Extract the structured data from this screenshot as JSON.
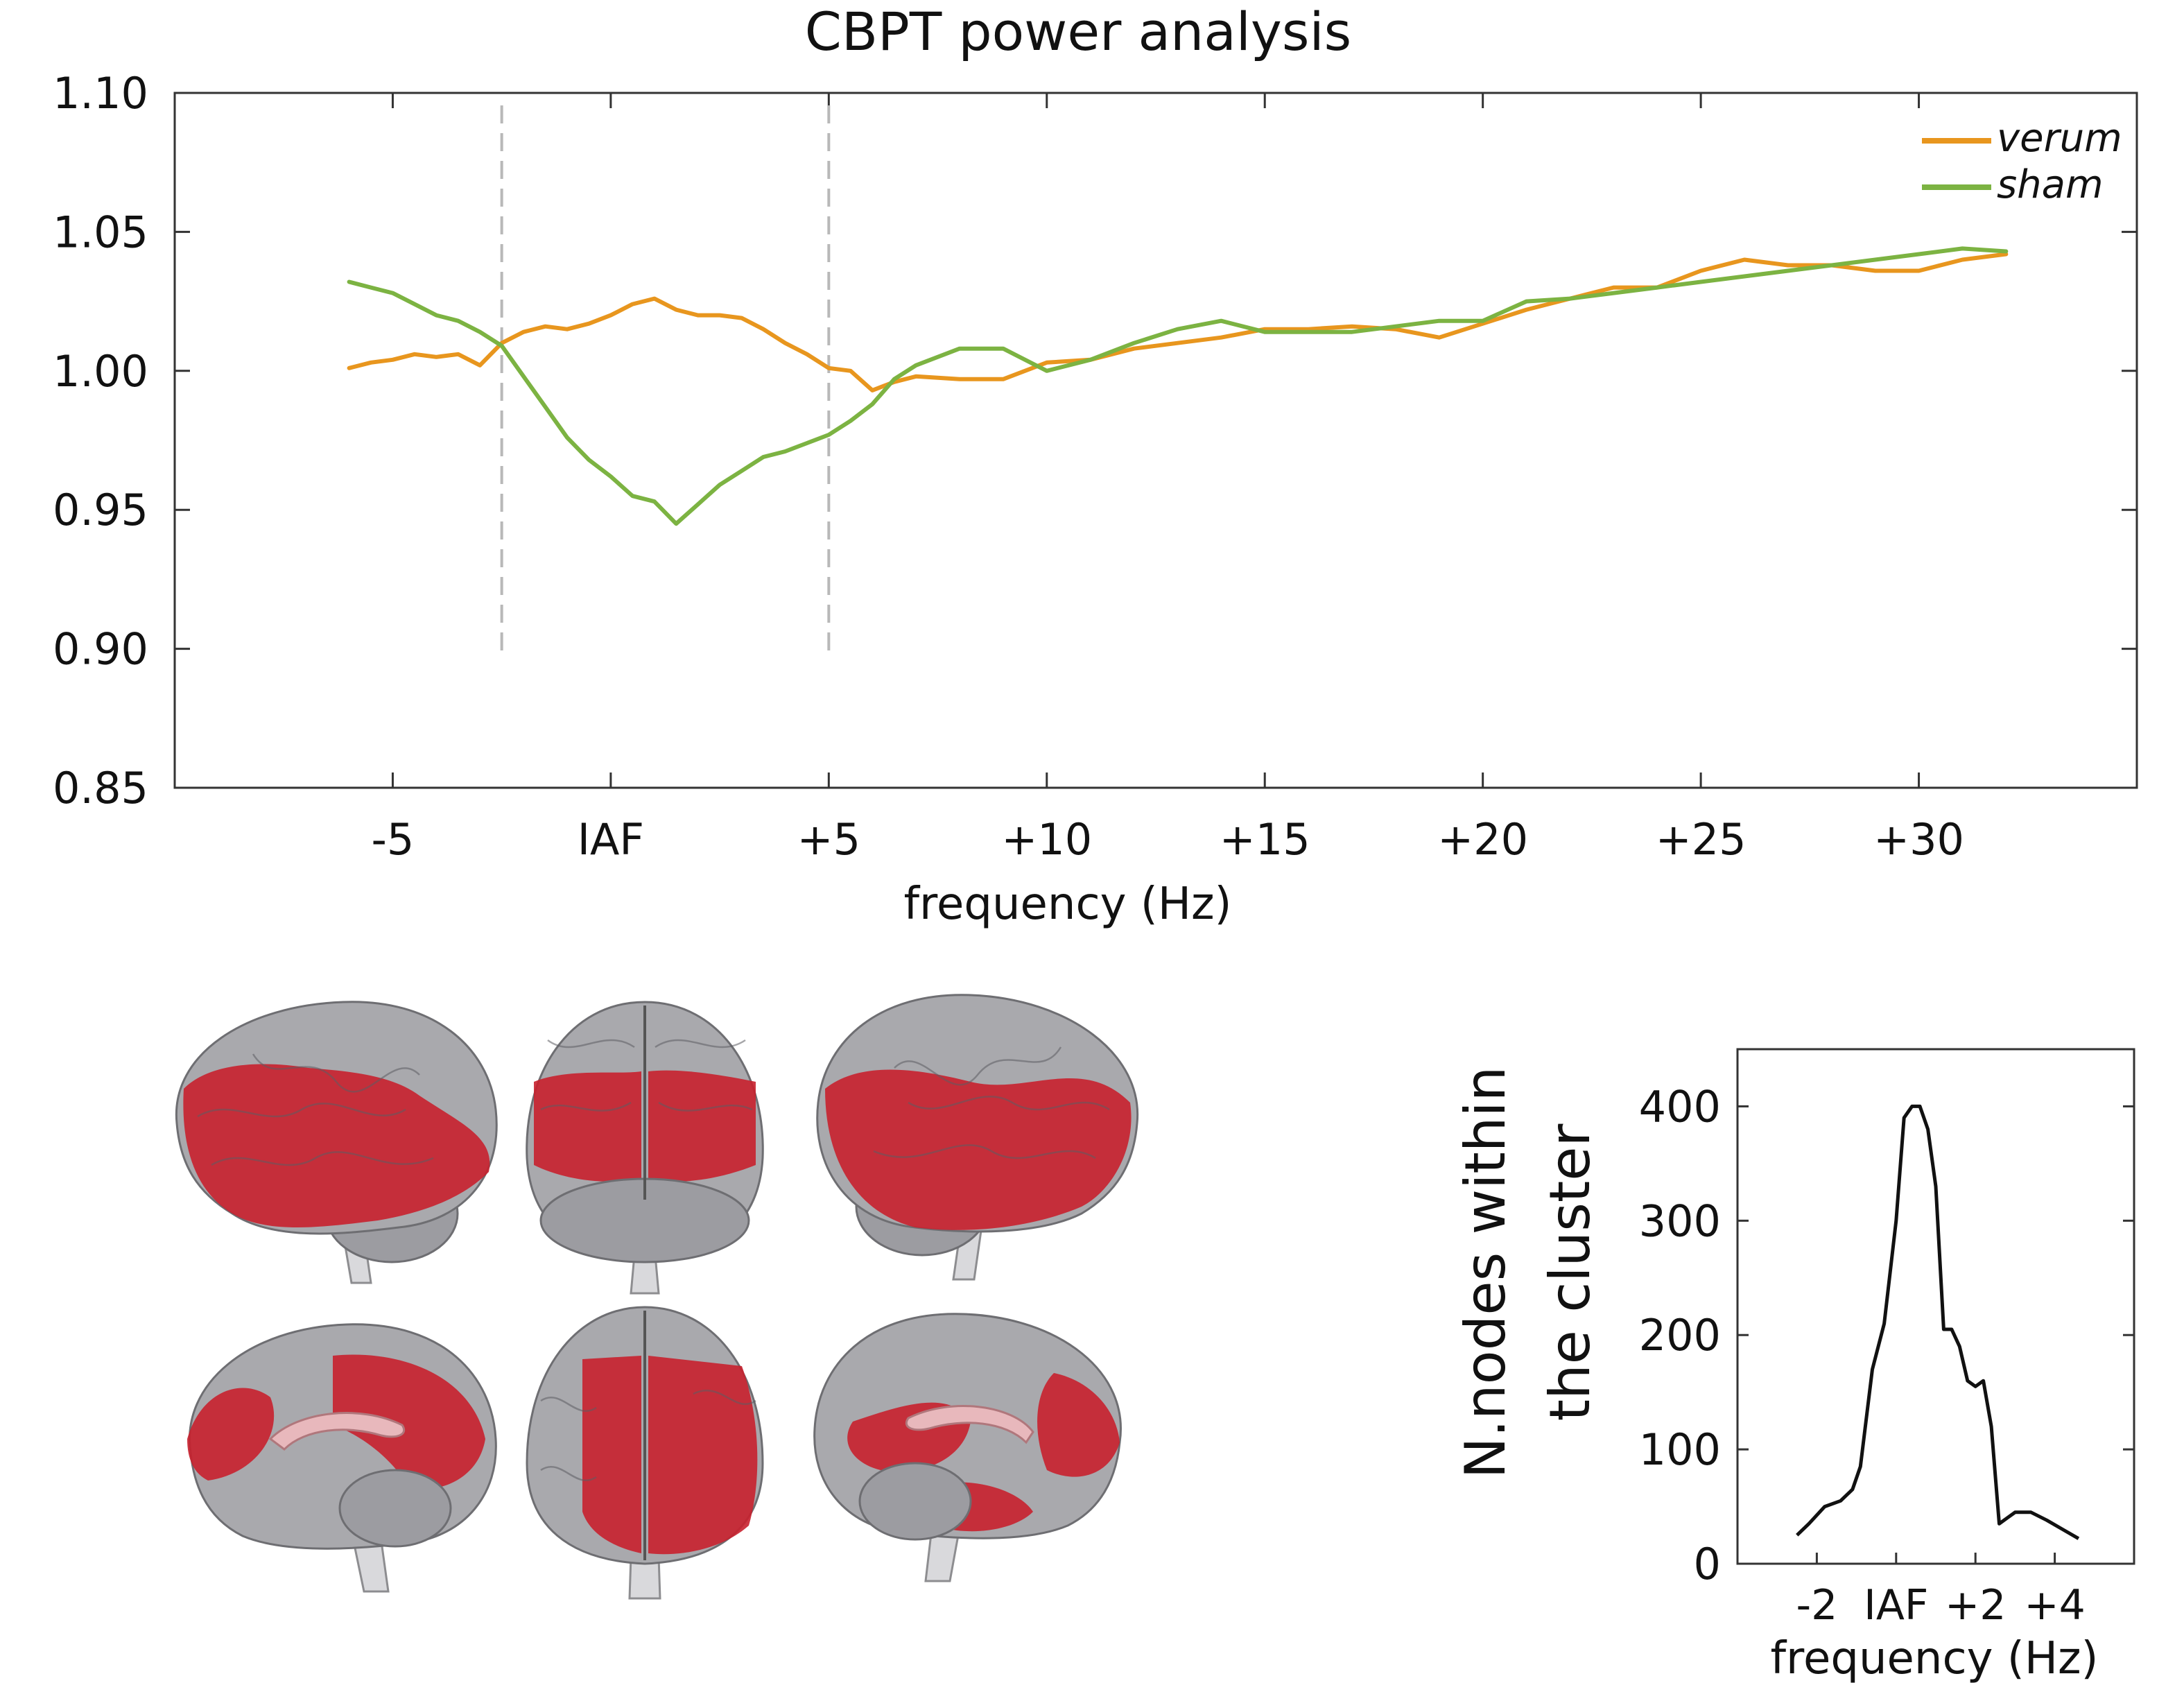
{
  "chart_data": [
    {
      "type": "line",
      "title": "CBPT power analysis",
      "xlabel": "frequency (Hz)",
      "ylabel": "",
      "x_tick_labels": [
        {
          "x": -5,
          "label": "-5"
        },
        {
          "x": 0,
          "label": "IAF"
        },
        {
          "x": 5,
          "label": "+5"
        },
        {
          "x": 10,
          "label": "+10"
        },
        {
          "x": 15,
          "label": "+15"
        },
        {
          "x": 20,
          "label": "+20"
        },
        {
          "x": 25,
          "label": "+25"
        },
        {
          "x": 30,
          "label": "+30"
        }
      ],
      "y_ticks": [
        "0.85",
        "0.90",
        "0.95",
        "1.00",
        "1.05",
        "1.10"
      ],
      "xlim": [
        -10,
        35
      ],
      "ylim": [
        0.85,
        1.1
      ],
      "vertical_markers": [
        -2.5,
        5
      ],
      "legend": "top-right",
      "grid": false,
      "series": [
        {
          "name": "verum",
          "color": "#E8961E",
          "x": [
            -6,
            -5.5,
            -5,
            -4.5,
            -4,
            -3.5,
            -3,
            -2.5,
            -2,
            -1.5,
            -1,
            -0.5,
            0,
            0.5,
            1,
            1.5,
            2,
            2.5,
            3,
            3.5,
            4,
            4.5,
            5,
            5.5,
            6,
            6.5,
            7,
            8,
            9,
            10,
            11,
            12,
            13,
            14,
            15,
            16,
            17,
            18,
            19,
            20,
            21,
            22,
            23,
            24,
            25,
            26,
            27,
            28,
            29,
            30,
            31,
            32
          ],
          "values": [
            1.001,
            1.003,
            1.004,
            1.006,
            1.005,
            1.006,
            1.002,
            1.01,
            1.014,
            1.016,
            1.015,
            1.017,
            1.02,
            1.024,
            1.026,
            1.022,
            1.02,
            1.02,
            1.019,
            1.015,
            1.01,
            1.006,
            1.001,
            1.0,
            0.993,
            0.996,
            0.998,
            0.997,
            0.997,
            1.003,
            1.004,
            1.008,
            1.01,
            1.012,
            1.015,
            1.015,
            1.016,
            1.015,
            1.012,
            1.017,
            1.022,
            1.026,
            1.03,
            1.03,
            1.036,
            1.04,
            1.038,
            1.038,
            1.036,
            1.036,
            1.04,
            1.042
          ]
        },
        {
          "name": "sham",
          "color": "#7CB342",
          "x": [
            -6,
            -5.5,
            -5,
            -4.5,
            -4,
            -3.5,
            -3,
            -2.5,
            -2,
            -1.5,
            -1,
            -0.5,
            0,
            0.5,
            1,
            1.5,
            2,
            2.5,
            3,
            3.5,
            4,
            4.5,
            5,
            5.5,
            6,
            6.5,
            7,
            8,
            9,
            10,
            11,
            12,
            13,
            14,
            15,
            16,
            17,
            18,
            19,
            20,
            21,
            22,
            23,
            24,
            25,
            26,
            27,
            28,
            29,
            30,
            31,
            32
          ],
          "values": [
            1.032,
            1.03,
            1.028,
            1.024,
            1.02,
            1.018,
            1.014,
            1.009,
            0.998,
            0.987,
            0.976,
            0.968,
            0.962,
            0.955,
            0.953,
            0.945,
            0.952,
            0.959,
            0.964,
            0.969,
            0.971,
            0.974,
            0.977,
            0.982,
            0.988,
            0.997,
            1.002,
            1.008,
            1.008,
            1.0,
            1.004,
            1.01,
            1.015,
            1.018,
            1.014,
            1.014,
            1.014,
            1.016,
            1.018,
            1.018,
            1.025,
            1.026,
            1.028,
            1.03,
            1.032,
            1.034,
            1.036,
            1.038,
            1.04,
            1.042,
            1.044,
            1.043
          ]
        }
      ]
    },
    {
      "type": "line",
      "title": "",
      "xlabel": "frequency (Hz)",
      "ylabel": "N.nodes within the cluster",
      "ylabel_lines": [
        "N.nodes within",
        "the cluster"
      ],
      "x_tick_labels": [
        {
          "x": -2,
          "label": "-2"
        },
        {
          "x": 0,
          "label": "IAF"
        },
        {
          "x": 2,
          "label": "+2"
        },
        {
          "x": 4,
          "label": "+4"
        }
      ],
      "y_ticks": [
        "0",
        "100",
        "200",
        "300",
        "400"
      ],
      "xlim": [
        -4,
        6
      ],
      "ylim": [
        0,
        450
      ],
      "grid": false,
      "series": [
        {
          "name": "",
          "color": "#111111",
          "x": [
            -2.5,
            -2.2,
            -1.8,
            -1.4,
            -1.1,
            -0.9,
            -0.6,
            -0.3,
            0,
            0.2,
            0.4,
            0.6,
            0.8,
            1.0,
            1.2,
            1.4,
            1.6,
            1.8,
            2.0,
            2.2,
            2.4,
            2.6,
            2.8,
            3.0,
            3.4,
            3.8,
            4.2,
            4.6
          ],
          "values": [
            25,
            35,
            50,
            55,
            65,
            85,
            170,
            210,
            300,
            390,
            400,
            400,
            380,
            330,
            205,
            205,
            190,
            160,
            155,
            160,
            120,
            35,
            40,
            45,
            45,
            38,
            30,
            22
          ]
        }
      ]
    }
  ],
  "brain_panel": {
    "views": [
      "left-lateral",
      "posterior",
      "right-lateral",
      "left-medial",
      "dorsal",
      "right-medial"
    ]
  }
}
